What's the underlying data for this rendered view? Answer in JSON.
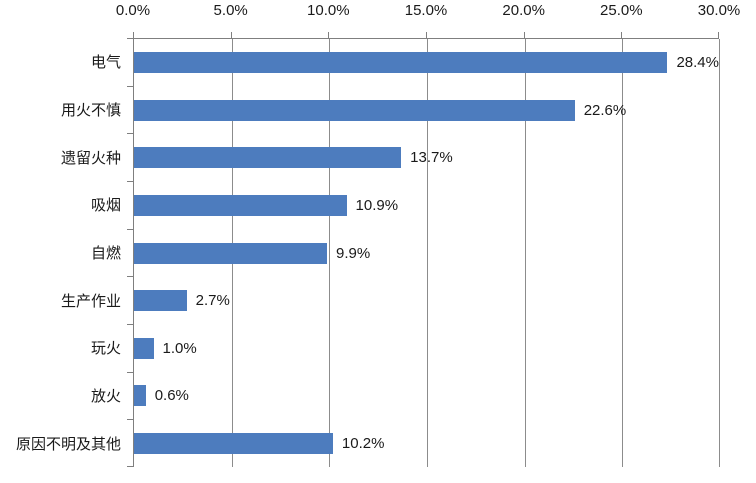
{
  "chart_data": {
    "type": "bar",
    "orientation": "horizontal",
    "title": "",
    "categories": [
      "电气",
      "用火不慎",
      "遗留火种",
      "吸烟",
      "自燃",
      "生产作业",
      "玩火",
      "放火",
      "原因不明及其他"
    ],
    "values": [
      28.4,
      22.6,
      13.7,
      10.9,
      9.9,
      2.7,
      1.0,
      0.6,
      10.2
    ],
    "value_labels": [
      "28.4%",
      "22.6%",
      "13.7%",
      "10.9%",
      "9.9%",
      "2.7%",
      "1.0%",
      "0.6%",
      "10.2%"
    ],
    "xlabel": "",
    "ylabel": "",
    "x_axis": {
      "position": "top",
      "min": 0,
      "max": 30,
      "tick_values": [
        0,
        5,
        10,
        15,
        20,
        25,
        30
      ],
      "tick_labels": [
        "0.0%",
        "5.0%",
        "10.0%",
        "15.0%",
        "20.0%",
        "25.0%",
        "30.0%"
      ]
    },
    "grid": "vertical",
    "legend": "none",
    "colors": {
      "bar": "#4d7cbe",
      "axis": "#7f7f7f",
      "gridline": "#8c8c8c",
      "text": "#1a1a1a",
      "background": "#ffffff"
    }
  }
}
